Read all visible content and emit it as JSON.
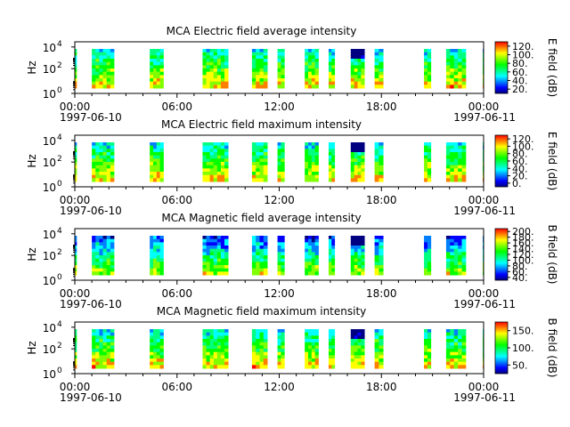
{
  "figure": {
    "background": "#ffffff"
  },
  "time_axis": {
    "start": "1997-06-10T00:00",
    "end": "1997-06-11T00:00",
    "tick_labels": [
      "00:00",
      "06:00",
      "12:00",
      "18:00",
      "00:00"
    ],
    "date_labels": [
      "1997-06-10",
      "1997-06-11"
    ],
    "minor_ticks_per_major": 6
  },
  "frequency_axis": {
    "label": "Hz",
    "scale": "log",
    "tick_labels": [
      "10",
      "10",
      "10"
    ],
    "tick_exponents": [
      "0",
      "2",
      "4"
    ]
  },
  "data_intervals_hours": [
    [
      0.0,
      0.1
    ],
    [
      1.0,
      2.3
    ],
    [
      4.4,
      5.2
    ],
    [
      7.5,
      9.0
    ],
    [
      10.4,
      11.3
    ],
    [
      11.9,
      12.3
    ],
    [
      13.5,
      14.3
    ],
    [
      14.9,
      15.25
    ],
    [
      16.2,
      17.0
    ],
    [
      17.6,
      18.1
    ],
    [
      20.5,
      20.9
    ],
    [
      21.8,
      22.95
    ],
    [
      23.95,
      24.0
    ]
  ],
  "colormap": [
    "#000080",
    "#0000ff",
    "#0080ff",
    "#00ffff",
    "#00ff80",
    "#00ff00",
    "#80ff00",
    "#ffff00",
    "#ff8000",
    "#ff0000"
  ],
  "chart_data": [
    {
      "type": "heatmap",
      "title": "MCA  Electric field average intensity",
      "ylabel": "Hz",
      "colorbar_label": "E field (dB)",
      "colorbar_ticks": [
        "20.",
        "40.",
        "60.",
        "80.",
        "100.",
        "120."
      ],
      "zlim": [
        15,
        130
      ]
    },
    {
      "type": "heatmap",
      "title": "MCA  Electric field maximum intensity",
      "ylabel": "Hz",
      "colorbar_label": "E field (dB)",
      "colorbar_ticks": [
        "0.",
        "20.",
        "40.",
        "60.",
        "80.",
        "100.",
        "120."
      ],
      "zlim": [
        0,
        135
      ]
    },
    {
      "type": "heatmap",
      "title": "MCA  Magnetic field average intensity",
      "ylabel": "Hz",
      "colorbar_label": "B field (dB)",
      "colorbar_ticks": [
        "40.",
        "60.",
        "80.",
        "100.",
        "120.",
        "140.",
        "160.",
        "180.",
        "200."
      ],
      "zlim": [
        35,
        205
      ]
    },
    {
      "type": "heatmap",
      "title": "MCA  Magnetic field maximum intensity",
      "ylabel": "Hz",
      "colorbar_label": "B field (dB)",
      "colorbar_ticks": [
        "50.",
        "100.",
        "150."
      ],
      "zlim": [
        20,
        200
      ]
    }
  ]
}
